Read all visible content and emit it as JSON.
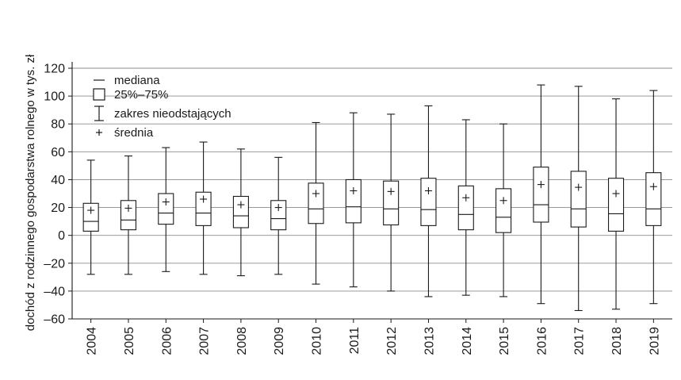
{
  "chart_data": {
    "type": "box",
    "title": "",
    "ylabel": "dochód z rodzinnego gospodarstwa rolnego w tys. zł",
    "xlabel": "",
    "ylim": [
      -60,
      120
    ],
    "yticks": [
      -60,
      -40,
      -20,
      0,
      20,
      40,
      60,
      80,
      100,
      120
    ],
    "ytick_labels": [
      "–60",
      "–40",
      "–20",
      "0",
      "20",
      "40",
      "60",
      "80",
      "100",
      "120"
    ],
    "grid": "horizontal",
    "legend_position": "top-left",
    "legend": {
      "median": "mediana",
      "box": "25%–75%",
      "whisker": "zakres nieodstających",
      "mean": "średnia"
    },
    "categories": [
      "2004",
      "2005",
      "2006",
      "2007",
      "2008",
      "2009",
      "2010",
      "2011",
      "2012",
      "2013",
      "2014",
      "2015",
      "2016",
      "2017",
      "2018",
      "2019"
    ],
    "boxes": [
      {
        "year": "2004",
        "whisker_low": -28,
        "q1": 3,
        "median": 10,
        "q3": 23,
        "whisker_high": 54,
        "mean": 18
      },
      {
        "year": "2005",
        "whisker_low": -28,
        "q1": 4,
        "median": 11,
        "q3": 25,
        "whisker_high": 57,
        "mean": 19.5
      },
      {
        "year": "2006",
        "whisker_low": -26,
        "q1": 8,
        "median": 16,
        "q3": 30,
        "whisker_high": 63,
        "mean": 24
      },
      {
        "year": "2007",
        "whisker_low": -28,
        "q1": 7,
        "median": 16,
        "q3": 31,
        "whisker_high": 67,
        "mean": 26
      },
      {
        "year": "2008",
        "whisker_low": -29,
        "q1": 5.5,
        "median": 14,
        "q3": 28,
        "whisker_high": 62,
        "mean": 22
      },
      {
        "year": "2009",
        "whisker_low": -28,
        "q1": 4,
        "median": 12,
        "q3": 25,
        "whisker_high": 56,
        "mean": 20
      },
      {
        "year": "2010",
        "whisker_low": -35,
        "q1": 8.5,
        "median": 19,
        "q3": 37.5,
        "whisker_high": 81,
        "mean": 30
      },
      {
        "year": "2011",
        "whisker_low": -37,
        "q1": 9,
        "median": 20.5,
        "q3": 40,
        "whisker_high": 88,
        "mean": 32
      },
      {
        "year": "2012",
        "whisker_low": -40,
        "q1": 7.5,
        "median": 19,
        "q3": 39,
        "whisker_high": 87,
        "mean": 31.5
      },
      {
        "year": "2013",
        "whisker_low": -44,
        "q1": 7,
        "median": 18.5,
        "q3": 41,
        "whisker_high": 93,
        "mean": 32
      },
      {
        "year": "2014",
        "whisker_low": -43,
        "q1": 4,
        "median": 15,
        "q3": 35.5,
        "whisker_high": 83,
        "mean": 27
      },
      {
        "year": "2015",
        "whisker_low": -44,
        "q1": 2,
        "median": 13,
        "q3": 33.5,
        "whisker_high": 80,
        "mean": 25
      },
      {
        "year": "2016",
        "whisker_low": -49,
        "q1": 9.5,
        "median": 22,
        "q3": 49,
        "whisker_high": 108,
        "mean": 36.5
      },
      {
        "year": "2017",
        "whisker_low": -54,
        "q1": 6,
        "median": 19,
        "q3": 46,
        "whisker_high": 107,
        "mean": 34.5
      },
      {
        "year": "2018",
        "whisker_low": -53,
        "q1": 3,
        "median": 15.5,
        "q3": 41,
        "whisker_high": 98,
        "mean": 30
      },
      {
        "year": "2019",
        "whisker_low": -49,
        "q1": 7,
        "median": 19,
        "q3": 45,
        "whisker_high": 104,
        "mean": 35
      }
    ]
  }
}
